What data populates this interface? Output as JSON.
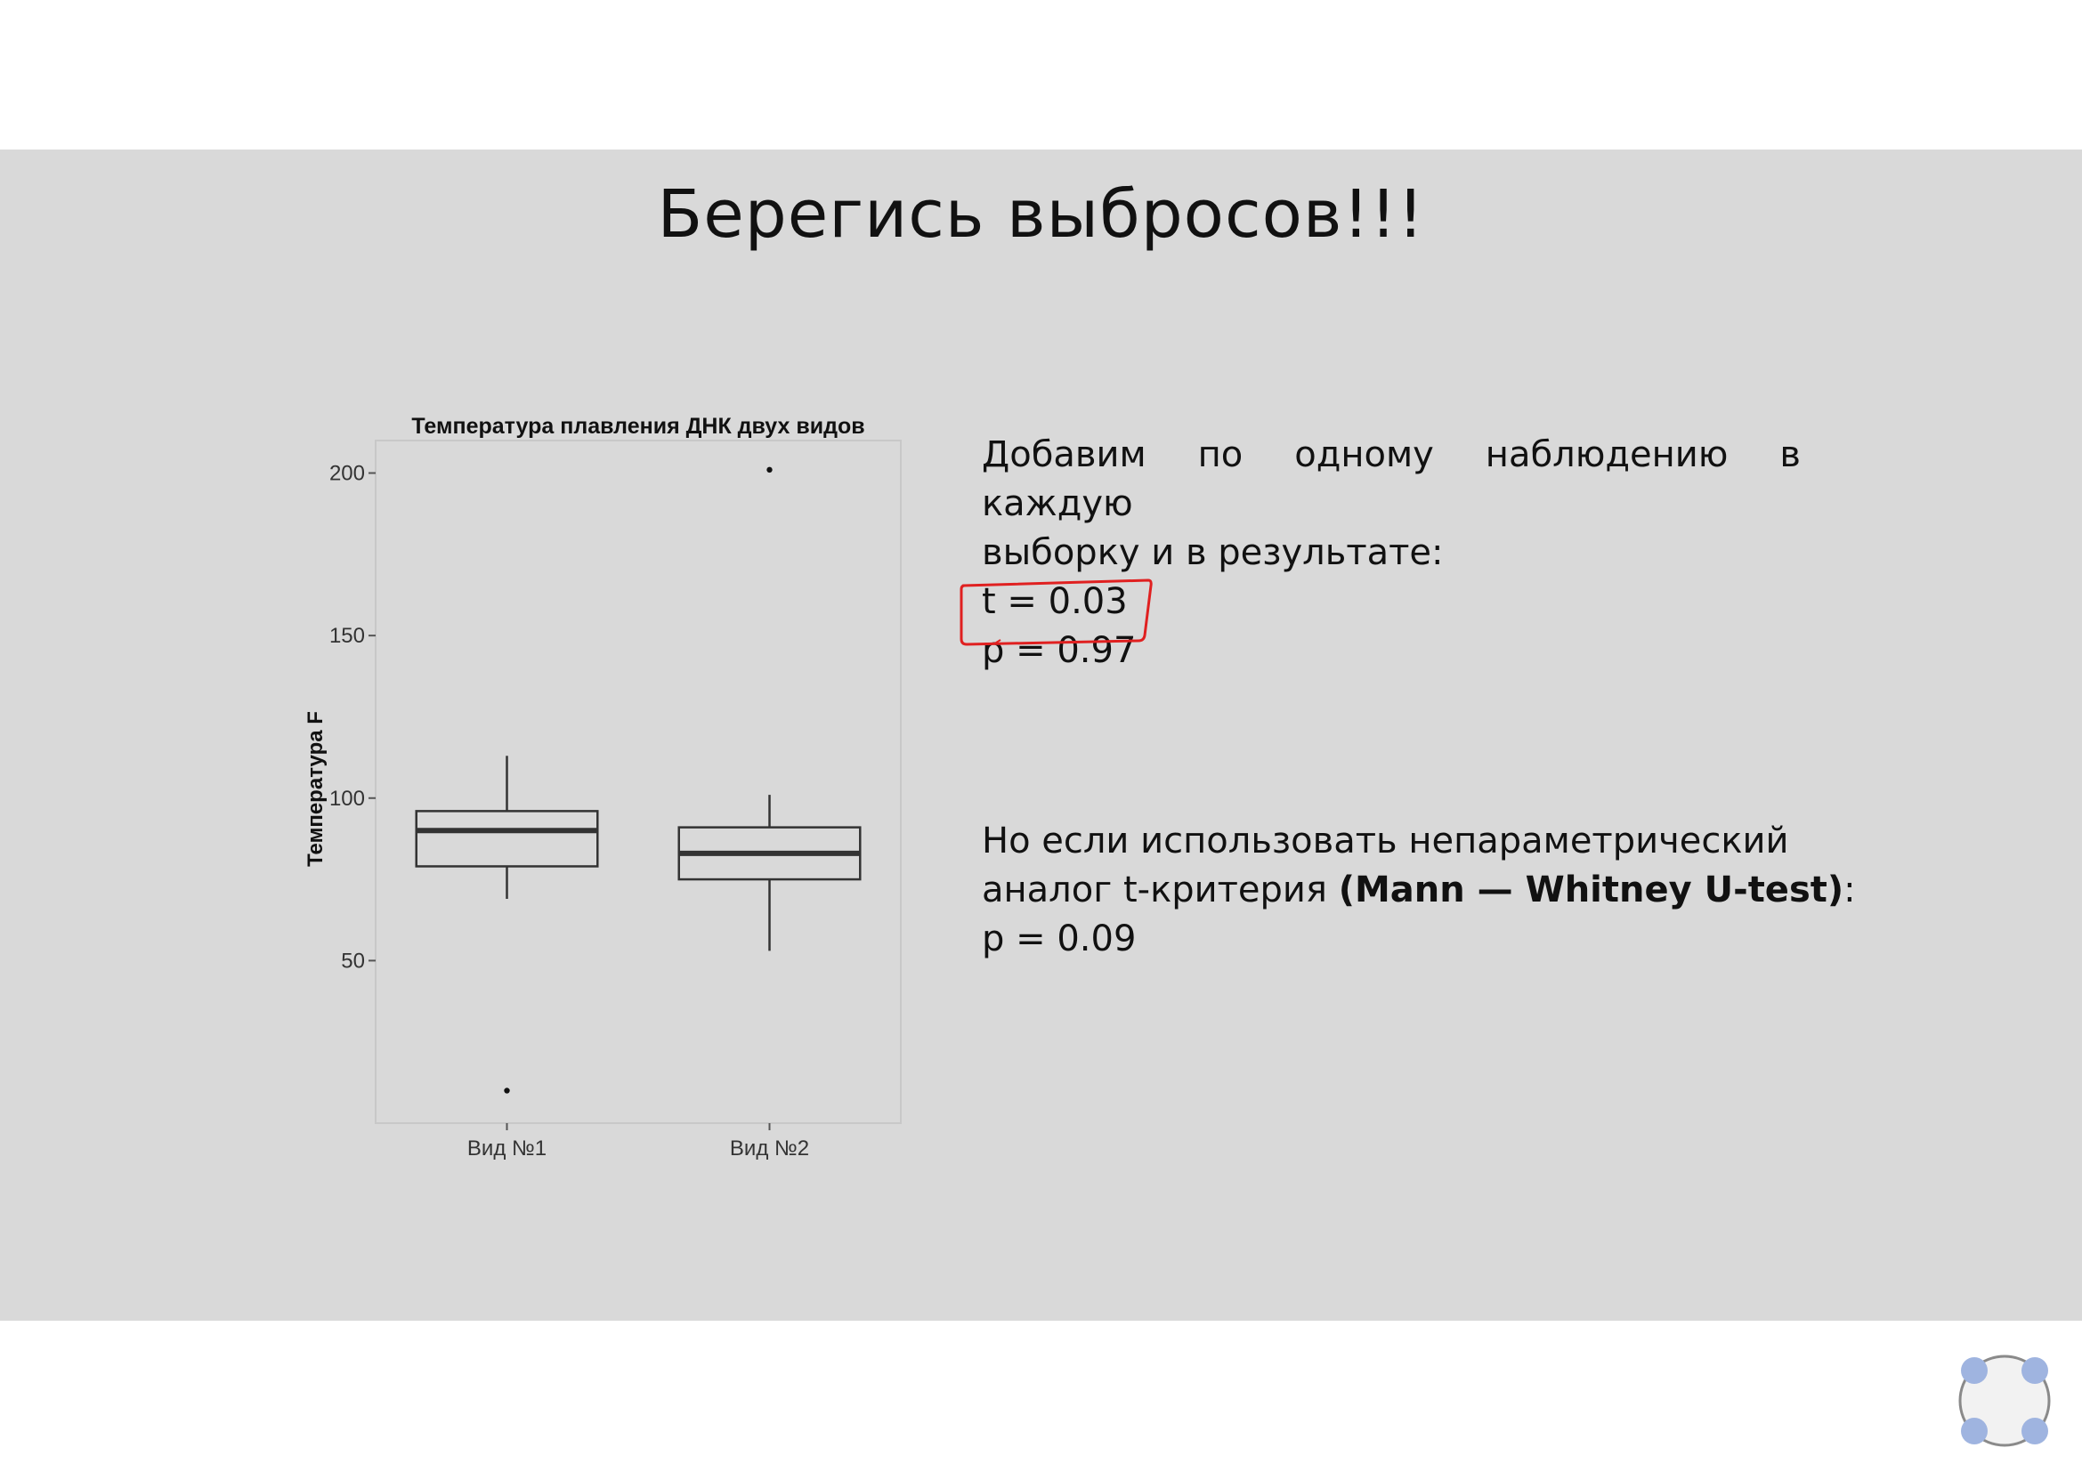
{
  "slide": {
    "title": "Берегись выбросов!!!"
  },
  "chart_data": {
    "type": "boxplot",
    "title": "Температура плавления ДНК двух видов",
    "xlabel": "",
    "ylabel": "Температура F",
    "categories": [
      "Вид №1",
      "Вид №2"
    ],
    "yticks": [
      50,
      100,
      150,
      200
    ],
    "ylim": [
      0,
      210
    ],
    "boxes": [
      {
        "category": "Вид №1",
        "whisker_low": 69,
        "q1": 79,
        "median": 90,
        "q3": 96,
        "whisker_high": 113,
        "outliers": [
          10
        ]
      },
      {
        "category": "Вид №2",
        "whisker_low": 53,
        "q1": 75,
        "median": 83,
        "q3": 91,
        "whisker_high": 101,
        "outliers": [
          201
        ]
      }
    ],
    "grid": false
  },
  "text1": {
    "line1": "Добавим по одному наблюдению в каждую",
    "line2": "выборку и в результате:",
    "t_value": "t = 0.03",
    "p_value": "p = 0.97"
  },
  "text2": {
    "line1": "Но если использовать непараметрический",
    "line2_prefix": "аналог t-критерия ",
    "line2_bold": "(Mann — Whitney U-test)",
    "line2_suffix": ":",
    "p_value": "p = 0.09"
  },
  "colors": {
    "slide_bg": "#d9d9d9",
    "annotation_red": "#e02020",
    "nav_dot": "#9fb4e0"
  },
  "icons": {
    "nav": "slide-navigator-icon"
  }
}
